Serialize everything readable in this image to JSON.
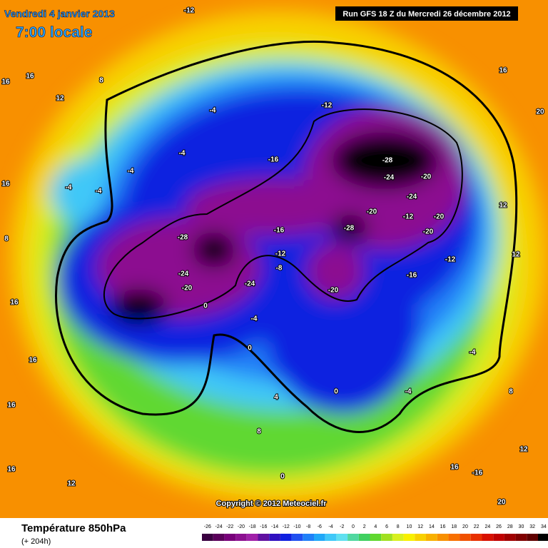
{
  "header": {
    "date": "Vendredi 4 janvier 2013",
    "time": "7:00 locale",
    "run": "Run GFS 18 Z du Mercredi 26 décembre 2012"
  },
  "map": {
    "labels": [
      "-12",
      "16",
      "16",
      "12",
      "8",
      "-4",
      "-12",
      "16",
      "-4",
      "-4",
      "-4",
      "-4",
      "-16",
      "-28",
      "-24",
      "-20",
      "-24",
      "-20",
      "-12",
      "-20",
      "-20",
      "-28",
      "-16",
      "-12",
      "-8",
      "-28",
      "-24",
      "-20",
      "-24",
      "-20",
      "-16",
      "-12",
      "0",
      "-4",
      "0",
      "-4",
      "-4",
      "0",
      "4",
      "8",
      "16",
      "16",
      "16",
      "12",
      "0",
      "20",
      "16",
      "12",
      "12",
      "8",
      "12",
      "16",
      "-16",
      "20",
      "8",
      "16"
    ]
  },
  "copyright": "Copyright © 2012 Meteociel.fr",
  "footer": {
    "title": "Température 850hPa",
    "lead": "(+ 204h)"
  },
  "legend": {
    "ticks": [
      -26,
      -24,
      -22,
      -20,
      -18,
      -16,
      -14,
      -12,
      -10,
      -8,
      -6,
      -4,
      -2,
      0,
      2,
      4,
      6,
      8,
      10,
      12,
      14,
      16,
      18,
      20,
      22,
      24,
      26,
      28,
      30,
      32,
      34
    ],
    "colors": [
      "#3a0040",
      "#5a005a",
      "#78007a",
      "#8c1090",
      "#a020a8",
      "#6010a0",
      "#3010c0",
      "#1020e0",
      "#2050f0",
      "#2080f8",
      "#20a8f8",
      "#40c8f8",
      "#60e0f0",
      "#50d8a0",
      "#40d060",
      "#60d830",
      "#a0e020",
      "#d8f020",
      "#f8f000",
      "#f8d000",
      "#f8b000",
      "#f89000",
      "#f87000",
      "#f05000",
      "#e83000",
      "#d81000",
      "#c00000",
      "#a00000",
      "#800000",
      "#600000",
      "#000000"
    ]
  }
}
